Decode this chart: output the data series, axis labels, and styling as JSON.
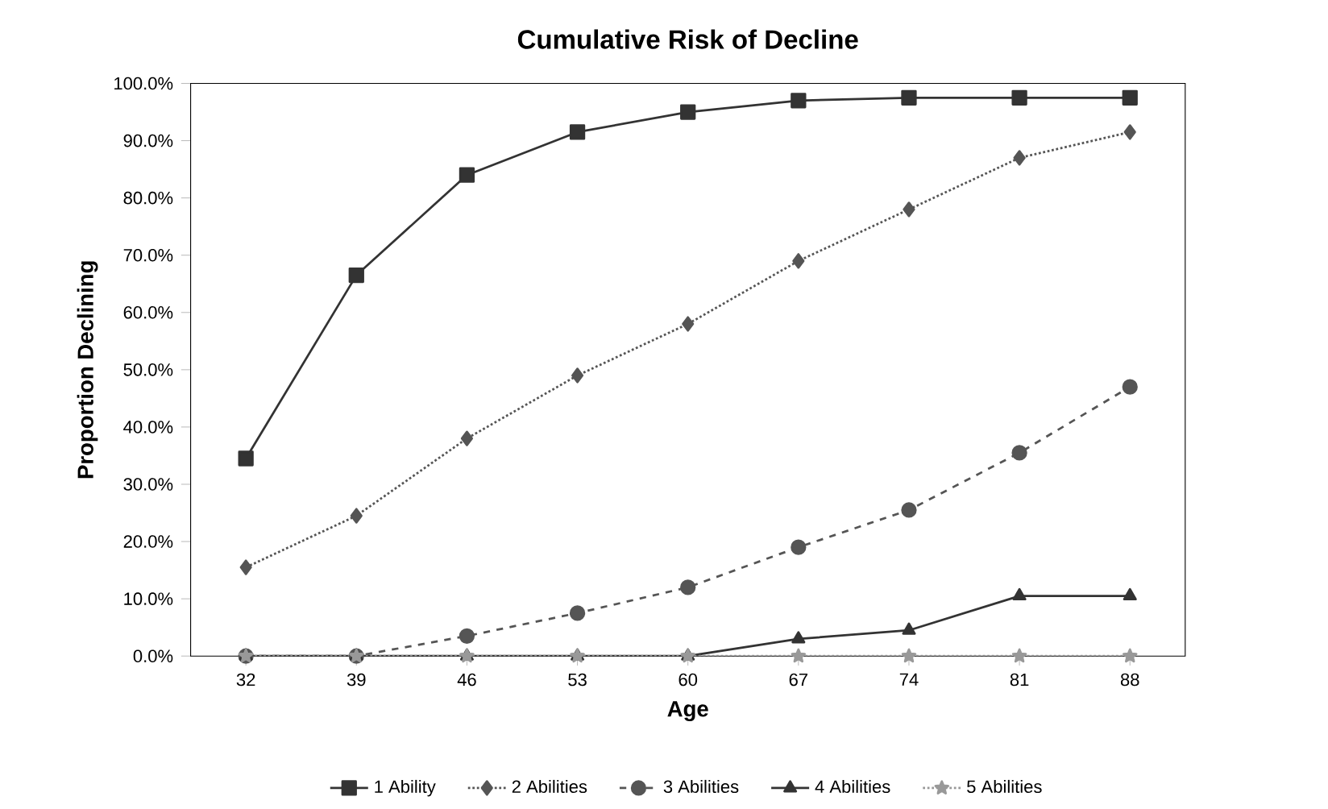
{
  "chart_data": {
    "type": "line",
    "title": "Cumulative Risk of Decline",
    "xlabel": "Age",
    "ylabel": "Proportion Declining",
    "categories": [
      "32",
      "39",
      "46",
      "53",
      "60",
      "67",
      "74",
      "81",
      "88"
    ],
    "ylim": [
      0,
      100
    ],
    "yticks": [
      {
        "value": 0,
        "label": "0.0%"
      },
      {
        "value": 10,
        "label": "10.0%"
      },
      {
        "value": 20,
        "label": "20.0%"
      },
      {
        "value": 30,
        "label": "30.0%"
      },
      {
        "value": 40,
        "label": "40.0%"
      },
      {
        "value": 50,
        "label": "50.0%"
      },
      {
        "value": 60,
        "label": "60.0%"
      },
      {
        "value": 70,
        "label": "70.0%"
      },
      {
        "value": 80,
        "label": "80.0%"
      },
      {
        "value": 90,
        "label": "90.0%"
      },
      {
        "value": 100,
        "label": "100.0%"
      }
    ],
    "legend": "bottom",
    "grid": false,
    "series": [
      {
        "name": "1 Ability",
        "color": "#333333",
        "marker": "square",
        "line_style": "solid",
        "values": [
          34.5,
          66.5,
          84,
          91.5,
          95,
          97,
          97.5,
          97.5,
          97.5
        ]
      },
      {
        "name": "2 Abilities",
        "color": "#555555",
        "marker": "diamond",
        "line_style": "dotted",
        "values": [
          15.5,
          24.5,
          38,
          49,
          58,
          69,
          78,
          87,
          91.5
        ]
      },
      {
        "name": "3 Abilities",
        "color": "#555555",
        "marker": "circle",
        "line_style": "dashed",
        "values": [
          0,
          0,
          3.5,
          7.5,
          12,
          19,
          25.5,
          35.5,
          47
        ]
      },
      {
        "name": "4 Abilities",
        "color": "#333333",
        "marker": "triangle",
        "line_style": "solid",
        "values": [
          0,
          0,
          0,
          0,
          0,
          3,
          4.5,
          10.5,
          10.5
        ]
      },
      {
        "name": "5 Abilities",
        "color": "#999999",
        "marker": "star",
        "line_style": "dotted",
        "values": [
          0,
          0,
          0,
          0,
          0,
          0,
          0,
          0,
          0
        ]
      }
    ]
  }
}
